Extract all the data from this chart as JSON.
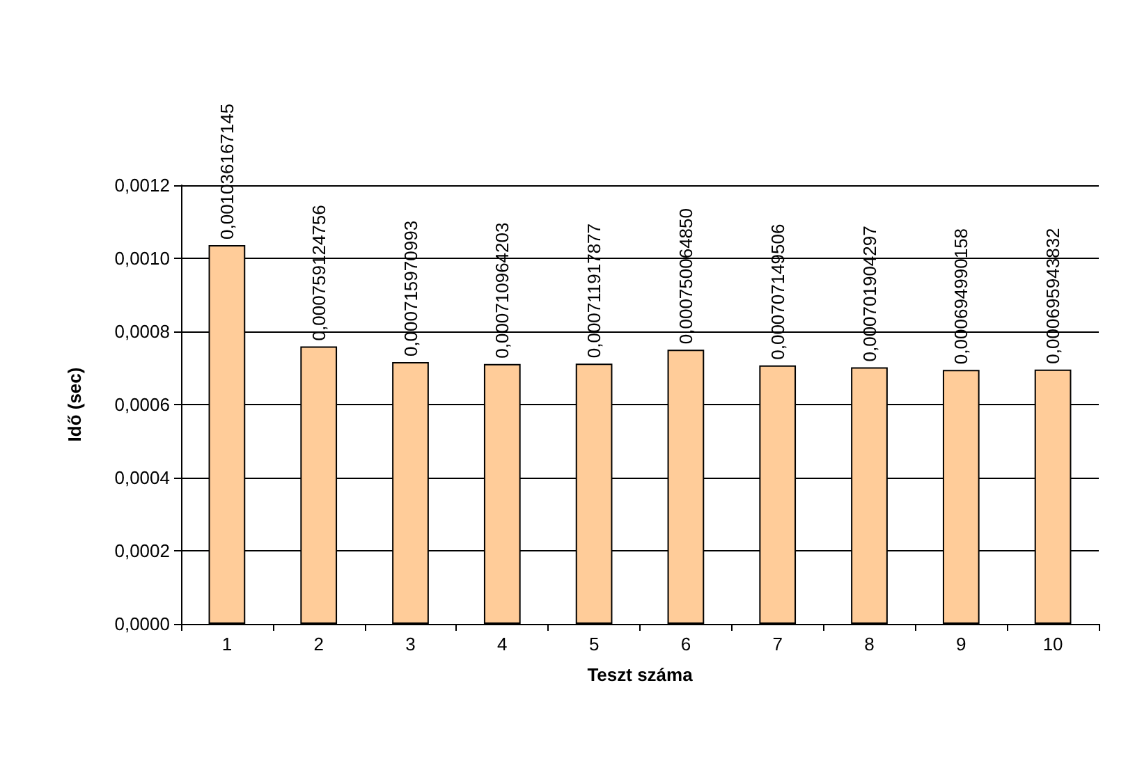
{
  "chart_data": {
    "type": "bar",
    "xlabel": "Teszt száma",
    "ylabel": "Idő (sec)",
    "categories": [
      "1",
      "2",
      "3",
      "4",
      "5",
      "6",
      "7",
      "8",
      "9",
      "10"
    ],
    "values": [
      0.001036167145,
      0.000759124756,
      0.000715970993,
      0.000710964203,
      0.000711917877,
      0.00075006485,
      0.000707149506,
      0.000701904297,
      0.000694990158,
      0.000695943832
    ],
    "value_labels": [
      "0,001036167145",
      "0,000759124756",
      "0,000715970993",
      "0,000710964203",
      "0,000711917877",
      "0,000750064850",
      "0,000707149506",
      "0,000701904297",
      "0,000694990158",
      "0,000695943832"
    ],
    "color": "#ffcc99",
    "ylim": [
      0,
      0.0012
    ],
    "yticks": [
      {
        "value": 0,
        "label": "0,0000"
      },
      {
        "value": 0.0002,
        "label": "0,0002"
      },
      {
        "value": 0.0004,
        "label": "0,0004"
      },
      {
        "value": 0.0006,
        "label": "0,0006"
      },
      {
        "value": 0.0008,
        "label": "0,0008"
      },
      {
        "value": 0.001,
        "label": "0,0010"
      },
      {
        "value": 0.0012,
        "label": "0,0012"
      }
    ],
    "grid": "y"
  }
}
